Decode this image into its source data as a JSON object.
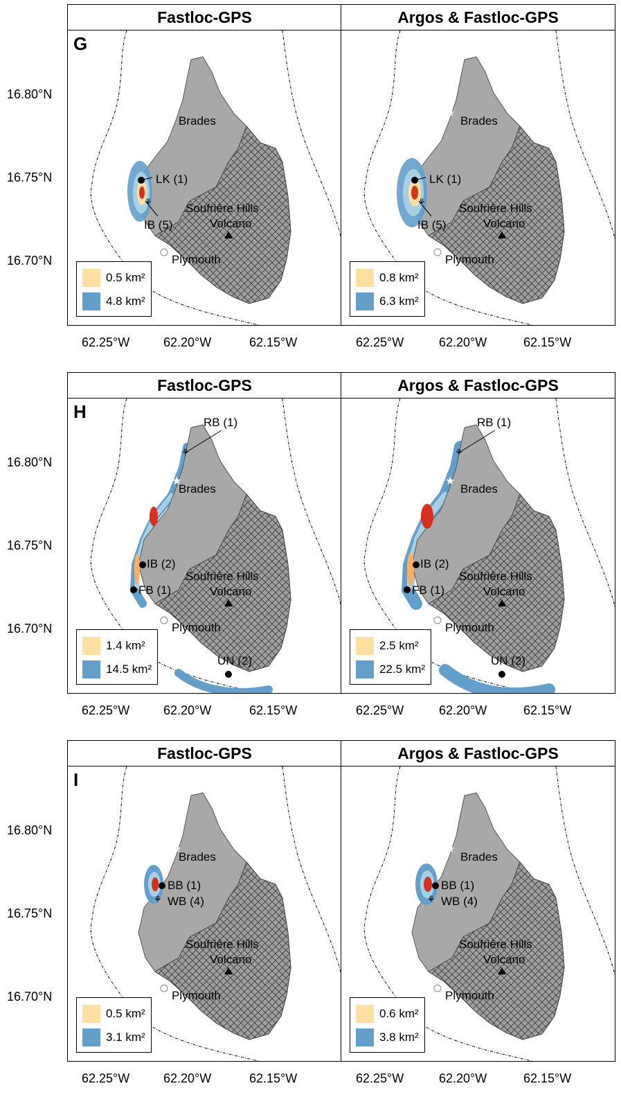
{
  "colors": {
    "core_swatch": "#FDDFA2",
    "range_swatch": "#62A0CB",
    "island": "#A8A8A8",
    "volcano_zone": "#9E9E9E"
  },
  "y_axis_labels": [
    "16.80°N",
    "16.75°N",
    "16.70°N"
  ],
  "x_axis_labels": [
    "62.25°W",
    "62.20°W",
    "62.15°W"
  ],
  "icons": [
    "star-icon",
    "town-dot-icon",
    "volcano-triangle-icon",
    "turtle-icon"
  ],
  "rows": [
    {
      "letter": "G",
      "panels": [
        {
          "title": "Fastloc-GPS",
          "legend": {
            "core": "0.5 km²",
            "range": "4.8 km²"
          },
          "labels": {
            "brades": "Brades",
            "plymouth": "Plymouth",
            "volcano1": "Soufrière Hills",
            "volcano2": "Volcano",
            "site1": "LK (1)",
            "site2": "IB (5)"
          }
        },
        {
          "title": "Argos & Fastloc-GPS",
          "legend": {
            "core": "0.8 km²",
            "range": "6.3 km²"
          },
          "labels": {
            "brades": "Brades",
            "plymouth": "Plymouth",
            "volcano1": "Soufrière Hills",
            "volcano2": "Volcano",
            "site1": "LK (1)",
            "site2": "IB (5)"
          }
        }
      ]
    },
    {
      "letter": "H",
      "panels": [
        {
          "title": "Fastloc-GPS",
          "legend": {
            "core": "1.4 km²",
            "range": "14.5 km²"
          },
          "labels": {
            "brades": "Brades",
            "plymouth": "Plymouth",
            "volcano1": "Soufrière Hills",
            "volcano2": "Volcano",
            "site1": "RB (1)",
            "site2": "IB (2)",
            "site3": "FB (1)",
            "site4": "UN (2)"
          }
        },
        {
          "title": "Argos & Fastloc-GPS",
          "legend": {
            "core": "2.5 km²",
            "range": "22.5 km²"
          },
          "labels": {
            "brades": "Brades",
            "plymouth": "Plymouth",
            "volcano1": "Soufrière Hills",
            "volcano2": "Volcano",
            "site1": "RB (1)",
            "site2": "IB (2)",
            "site3": "FB (1)",
            "site4": "UN (2)"
          }
        }
      ]
    },
    {
      "letter": "I",
      "panels": [
        {
          "title": "Fastloc-GPS",
          "legend": {
            "core": "0.5 km²",
            "range": "3.1 km²"
          },
          "labels": {
            "brades": "Brades",
            "plymouth": "Plymouth",
            "volcano1": "Soufrière Hills",
            "volcano2": "Volcano",
            "site1": "BB (1)",
            "site2": "WB (4)"
          }
        },
        {
          "title": "Argos & Fastloc-GPS",
          "legend": {
            "core": "0.6 km²",
            "range": "3.8 km²"
          },
          "labels": {
            "brades": "Brades",
            "plymouth": "Plymouth",
            "volcano1": "Soufrière Hills",
            "volcano2": "Volcano",
            "site1": "BB (1)",
            "site2": "WB (4)"
          }
        }
      ]
    }
  ]
}
